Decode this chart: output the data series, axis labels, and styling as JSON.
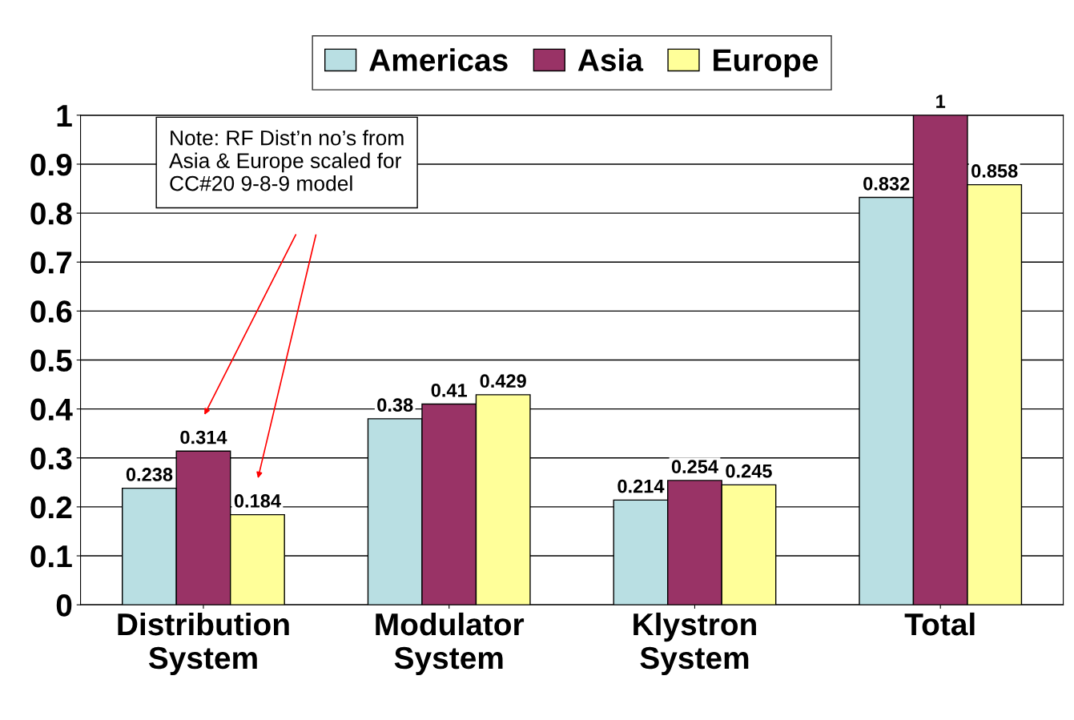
{
  "chart_data": {
    "type": "bar",
    "categories": [
      "Distribution\nSystem",
      "Modulator\nSystem",
      "Klystron\nSystem",
      "Total"
    ],
    "series": [
      {
        "name": "Americas",
        "color": "#b9dfe3",
        "values": [
          0.238,
          0.38,
          0.214,
          0.832
        ]
      },
      {
        "name": "Asia",
        "color": "#993366",
        "values": [
          0.314,
          0.41,
          0.254,
          1
        ]
      },
      {
        "name": "Europe",
        "color": "#ffff99",
        "values": [
          0.184,
          0.429,
          0.245,
          0.858
        ]
      }
    ],
    "ylim": [
      0,
      1
    ],
    "yticks": [
      0,
      0.1,
      0.2,
      0.3,
      0.4,
      0.5,
      0.6,
      0.7,
      0.8,
      0.9,
      1
    ],
    "grid": "y",
    "legend": "top",
    "data_labels": true,
    "annotations": [
      "Note: RF Dist’n no’s from\nAsia & Europe scaled for\nCC#20 9-8-9 model"
    ]
  }
}
